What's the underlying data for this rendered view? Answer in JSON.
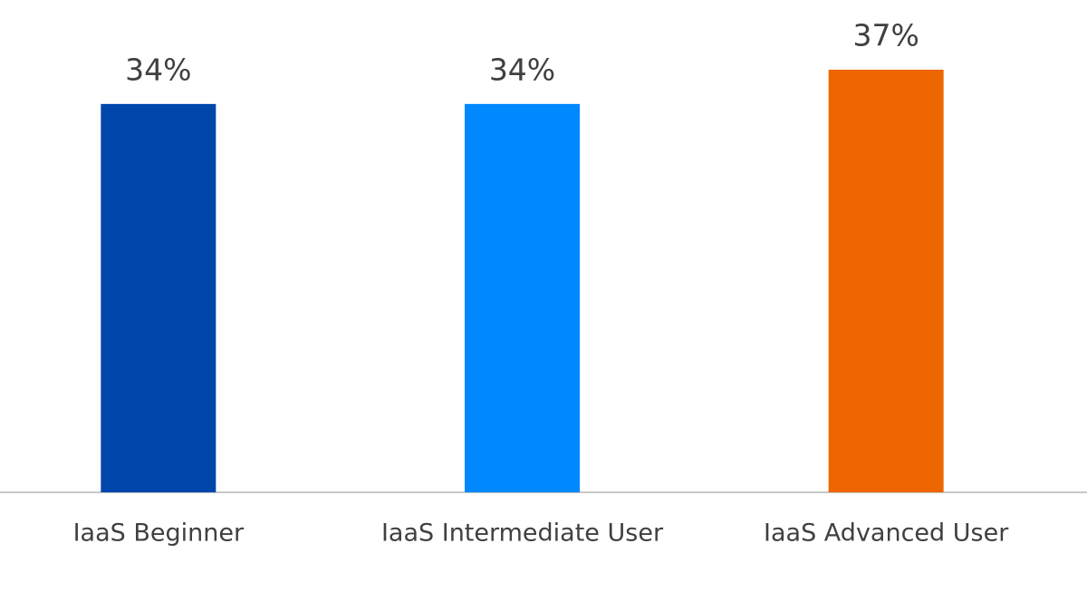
{
  "chart_data": {
    "type": "bar",
    "categories": [
      "IaaS Beginner",
      "IaaS Intermediate User",
      "IaaS Advanced User"
    ],
    "values": [
      34,
      34,
      37
    ],
    "value_labels": [
      "34%",
      "34%",
      "37%"
    ],
    "colors": [
      "#0047ab",
      "#0088ff",
      "#ee6600"
    ]
  }
}
